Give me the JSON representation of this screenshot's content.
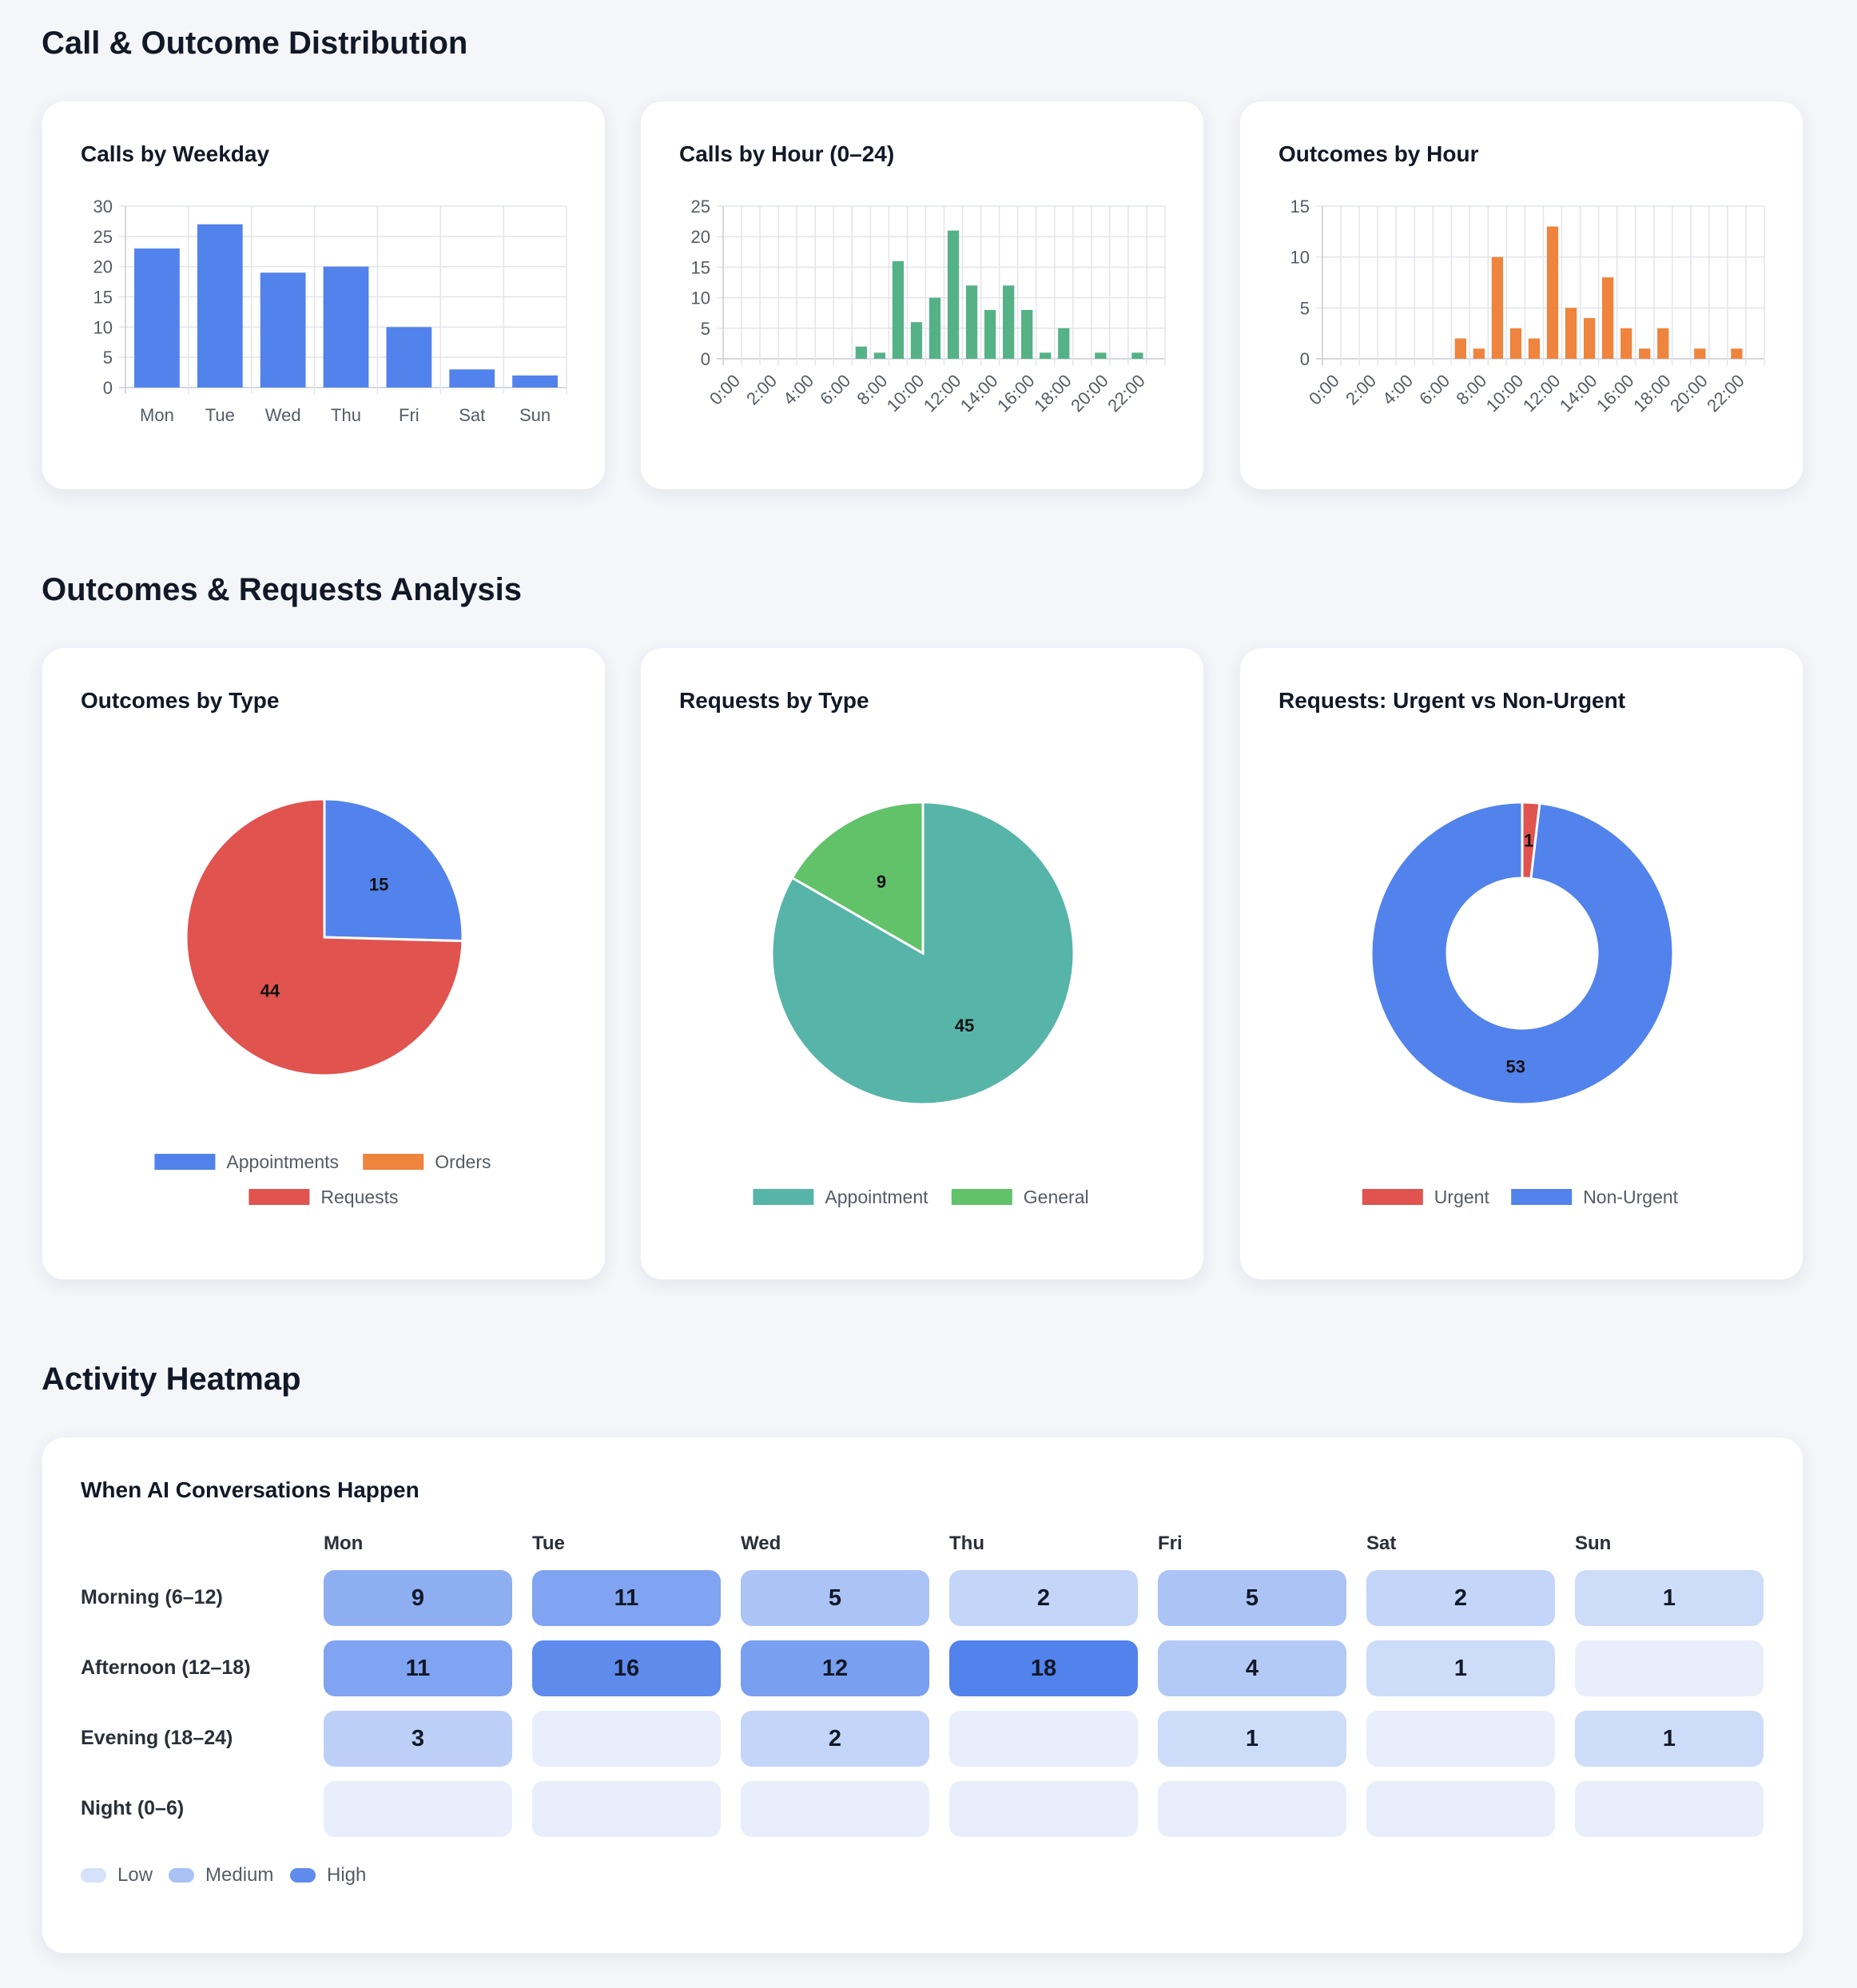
{
  "sections": {
    "distribution_title": "Call & Outcome Distribution",
    "analysis_title": "Outcomes & Requests Analysis",
    "heatmap_title": "Activity Heatmap"
  },
  "cards": {
    "weekday": "Calls by Weekday",
    "hour": "Calls by Hour (0–24)",
    "outcomes_hour": "Outcomes by Hour",
    "outcomes_type": "Outcomes by Type",
    "requests_type": "Requests by Type",
    "urgent": "Requests: Urgent vs Non-Urgent",
    "heatmap": "When AI Conversations Happen"
  },
  "chart_data": [
    {
      "id": "calls_by_weekday",
      "type": "bar",
      "title": "Calls by Weekday",
      "categories": [
        "Mon",
        "Tue",
        "Wed",
        "Thu",
        "Fri",
        "Sat",
        "Sun"
      ],
      "values": [
        23,
        27,
        19,
        20,
        10,
        3,
        2
      ],
      "ylim": [
        0,
        30
      ],
      "yticks": [
        0,
        5,
        10,
        15,
        20,
        25,
        30
      ],
      "color": "#5282ec",
      "grid": true
    },
    {
      "id": "calls_by_hour",
      "type": "bar",
      "title": "Calls by Hour (0–24)",
      "categories": [
        "0:00",
        "1:00",
        "2:00",
        "3:00",
        "4:00",
        "5:00",
        "6:00",
        "7:00",
        "8:00",
        "9:00",
        "10:00",
        "11:00",
        "12:00",
        "13:00",
        "14:00",
        "15:00",
        "16:00",
        "17:00",
        "18:00",
        "19:00",
        "20:00",
        "21:00",
        "22:00",
        "23:00"
      ],
      "values": [
        0,
        0,
        0,
        0,
        0,
        0,
        0,
        2,
        1,
        16,
        6,
        10,
        21,
        12,
        8,
        12,
        8,
        1,
        5,
        0,
        1,
        0,
        1,
        0
      ],
      "tick_labels": [
        "0:00",
        "2:00",
        "4:00",
        "6:00",
        "8:00",
        "10:00",
        "12:00",
        "14:00",
        "16:00",
        "18:00",
        "20:00",
        "22:00"
      ],
      "ylim": [
        0,
        25
      ],
      "yticks": [
        0,
        5,
        10,
        15,
        20,
        25
      ],
      "color": "#55b287",
      "grid": true
    },
    {
      "id": "outcomes_by_hour",
      "type": "bar",
      "title": "Outcomes by Hour",
      "categories": [
        "0:00",
        "1:00",
        "2:00",
        "3:00",
        "4:00",
        "5:00",
        "6:00",
        "7:00",
        "8:00",
        "9:00",
        "10:00",
        "11:00",
        "12:00",
        "13:00",
        "14:00",
        "15:00",
        "16:00",
        "17:00",
        "18:00",
        "19:00",
        "20:00",
        "21:00",
        "22:00",
        "23:00"
      ],
      "values": [
        0,
        0,
        0,
        0,
        0,
        0,
        0,
        2,
        1,
        10,
        3,
        2,
        13,
        5,
        4,
        8,
        3,
        1,
        3,
        0,
        1,
        0,
        1,
        0
      ],
      "tick_labels": [
        "0:00",
        "2:00",
        "4:00",
        "6:00",
        "8:00",
        "10:00",
        "12:00",
        "14:00",
        "16:00",
        "18:00",
        "20:00",
        "22:00"
      ],
      "ylim": [
        0,
        15
      ],
      "yticks": [
        0,
        5,
        10,
        15
      ],
      "color": "#ee843e",
      "grid": true
    },
    {
      "id": "outcomes_by_type",
      "type": "pie",
      "title": "Outcomes by Type",
      "slices": [
        {
          "name": "Appointments",
          "value": 15,
          "color": "#5282ec"
        },
        {
          "name": "Orders",
          "value": 0,
          "color": "#ee843e"
        },
        {
          "name": "Requests",
          "value": 44,
          "color": "#e0534f"
        }
      ],
      "legend": "bottom"
    },
    {
      "id": "requests_by_type",
      "type": "pie",
      "title": "Requests by Type",
      "slices": [
        {
          "name": "Appointment",
          "value": 45,
          "color": "#56b5a8"
        },
        {
          "name": "General",
          "value": 9,
          "color": "#61c26a"
        }
      ],
      "legend": "bottom"
    },
    {
      "id": "requests_urgent",
      "type": "pie",
      "variant": "doughnut",
      "title": "Requests: Urgent vs Non-Urgent",
      "slices": [
        {
          "name": "Urgent",
          "value": 1,
          "color": "#e0534f"
        },
        {
          "name": "Non-Urgent",
          "value": 53,
          "color": "#5282ec"
        }
      ],
      "legend": "bottom"
    },
    {
      "id": "activity_heatmap",
      "type": "heatmap",
      "title": "When AI Conversations Happen",
      "columns": [
        "Mon",
        "Tue",
        "Wed",
        "Thu",
        "Fri",
        "Sat",
        "Sun"
      ],
      "rows": [
        "Morning (6–12)",
        "Afternoon (12–18)",
        "Evening (18–24)",
        "Night (0–6)"
      ],
      "values": [
        [
          9,
          11,
          5,
          2,
          5,
          2,
          1
        ],
        [
          11,
          16,
          12,
          18,
          4,
          1,
          0
        ],
        [
          3,
          0,
          2,
          0,
          1,
          0,
          1
        ],
        [
          0,
          0,
          0,
          0,
          0,
          0,
          0
        ]
      ],
      "max": 18,
      "legend": [
        {
          "label": "Low",
          "color": "#d6e1fa"
        },
        {
          "label": "Medium",
          "color": "#a9c1f4"
        },
        {
          "label": "High",
          "color": "#5e8bec"
        }
      ]
    }
  ]
}
